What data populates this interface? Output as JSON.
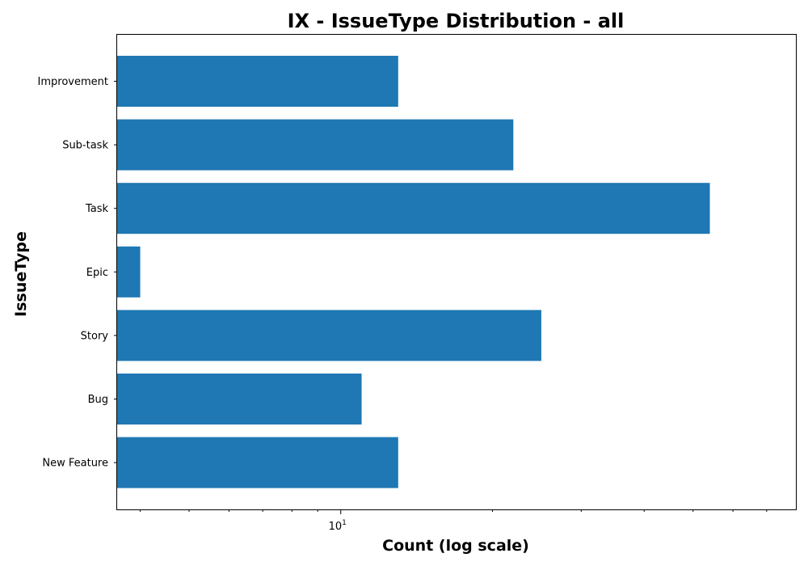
{
  "chart_data": {
    "type": "bar",
    "orientation": "horizontal",
    "title": "IX - IssueType Distribution - all",
    "xlabel": "Count (log scale)",
    "ylabel": "IssueType",
    "x_scale": "log",
    "xlim": [
      3.6,
      80
    ],
    "x_major_ticks": [
      {
        "value": 10,
        "base": "10",
        "exp": "1"
      }
    ],
    "x_minor_ticks": [
      4,
      5,
      6,
      7,
      8,
      9,
      20,
      30,
      40,
      50,
      60,
      70
    ],
    "grid": false,
    "legend": "none",
    "categories": [
      "Improvement",
      "Sub-task",
      "Task",
      "Epic",
      "Story",
      "Bug",
      "New Feature"
    ],
    "values": [
      13,
      22,
      54,
      4,
      25,
      11,
      13
    ],
    "bar_color": "#1f77b4"
  }
}
